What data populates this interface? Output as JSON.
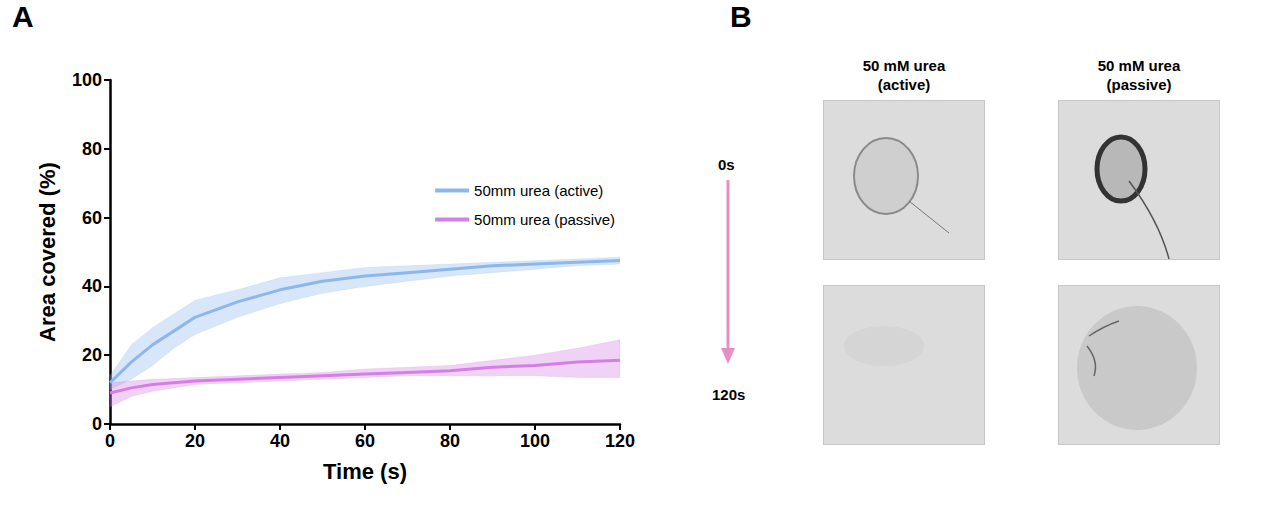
{
  "chart_data": {
    "type": "line",
    "panel_label": "A",
    "x_label": "Time (s)",
    "y_label": "Area covered (%)",
    "x": [
      0,
      5,
      10,
      15,
      20,
      30,
      40,
      50,
      60,
      70,
      80,
      90,
      100,
      110,
      120
    ],
    "series": [
      {
        "name": "50mm urea (active)",
        "color": "#8db7ea",
        "values": [
          12,
          18,
          23,
          27,
          31,
          35.5,
          39,
          41.5,
          43,
          44,
          45,
          46,
          46.5,
          47,
          47.5
        ],
        "lower": [
          10,
          13,
          17,
          22,
          26,
          31,
          35,
          38,
          40,
          41.5,
          43,
          44,
          45,
          46,
          46.5
        ],
        "upper": [
          14,
          23,
          28,
          32,
          36,
          39,
          42.5,
          44,
          45.5,
          46,
          46.5,
          47,
          47.5,
          48,
          48.5
        ]
      },
      {
        "name": "50mm urea (passive)",
        "color": "#d37fe6",
        "values": [
          9,
          10.5,
          11.5,
          12,
          12.5,
          13,
          13.5,
          14,
          14.5,
          15,
          15.5,
          16.5,
          17,
          18,
          18.5
        ],
        "lower": [
          5,
          8,
          9.5,
          10.5,
          11.5,
          12,
          12.5,
          13,
          13.5,
          14,
          14,
          14,
          14,
          13.5,
          13.5
        ],
        "upper": [
          12,
          12.5,
          13,
          13.2,
          13.5,
          14,
          14.5,
          15,
          16,
          16.5,
          17,
          18.5,
          20,
          22,
          24.5
        ]
      }
    ],
    "xlim": [
      0,
      120
    ],
    "xticks": [
      0,
      20,
      40,
      60,
      80,
      100,
      120
    ],
    "ylim": [
      0,
      100
    ],
    "yticks": [
      0,
      20,
      40,
      60,
      80,
      100
    ],
    "grid": false,
    "legend": "right"
  },
  "panel_b": {
    "label": "B",
    "columns": [
      "50 mM urea (active)",
      "50 mM urea (passive)"
    ],
    "rows": [
      "0s",
      "120s"
    ]
  }
}
